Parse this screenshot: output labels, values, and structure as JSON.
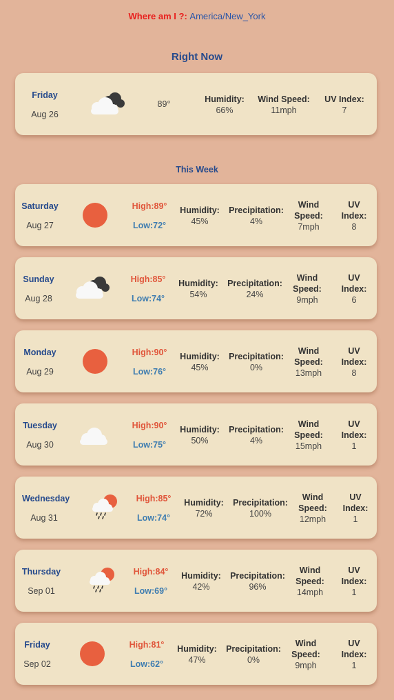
{
  "location": {
    "label": "Where am I ?:",
    "value": "America/New_York"
  },
  "current": {
    "section_title": "Right Now",
    "day": "Friday",
    "date": "Aug 26",
    "icon": "cloudy-icon",
    "temp": "89°",
    "humidity_label": "Humidity:",
    "humidity": "66%",
    "wind_label": "Wind Speed:",
    "wind": "11mph",
    "uv_label": "UV Index:",
    "uv": "7"
  },
  "week": {
    "section_title": "This Week",
    "labels": {
      "humidity": "Humidity:",
      "precip": "Precipitation:",
      "wind_1": "Wind",
      "wind_2": "Speed:",
      "uv_1": "UV",
      "uv_2": "Index:"
    },
    "days": [
      {
        "day": "Saturday",
        "date": "Aug 27",
        "icon": "sun-icon",
        "high": "High:89°",
        "low": "Low:72°",
        "humidity": "45%",
        "precip": "4%",
        "wind": "7mph",
        "uv": "8"
      },
      {
        "day": "Sunday",
        "date": "Aug 28",
        "icon": "cloudy-icon",
        "high": "High:85°",
        "low": "Low:74°",
        "humidity": "54%",
        "precip": "24%",
        "wind": "9mph",
        "uv": "6"
      },
      {
        "day": "Monday",
        "date": "Aug 29",
        "icon": "sun-icon",
        "high": "High:90°",
        "low": "Low:76°",
        "humidity": "45%",
        "precip": "0%",
        "wind": "13mph",
        "uv": "8"
      },
      {
        "day": "Tuesday",
        "date": "Aug 30",
        "icon": "cloud-icon",
        "high": "High:90°",
        "low": "Low:75°",
        "humidity": "50%",
        "precip": "4%",
        "wind": "15mph",
        "uv": "1"
      },
      {
        "day": "Wednesday",
        "date": "Aug 31",
        "icon": "rain-sun-icon",
        "high": "High:85°",
        "low": "Low:74°",
        "humidity": "72%",
        "precip": "100%",
        "wind": "12mph",
        "uv": "1"
      },
      {
        "day": "Thursday",
        "date": "Sep 01",
        "icon": "rain-sun-icon",
        "high": "High:84°",
        "low": "Low:69°",
        "humidity": "42%",
        "precip": "96%",
        "wind": "14mph",
        "uv": "1"
      },
      {
        "day": "Friday",
        "date": "Sep 02",
        "icon": "sun-icon",
        "high": "High:81°",
        "low": "Low:62°",
        "humidity": "47%",
        "precip": "0%",
        "wind": "9mph",
        "uv": "1"
      }
    ]
  },
  "colors": {
    "background": "#e2b49a",
    "card": "#f0e3c6",
    "sun": "#e8603f",
    "cloud_light": "#f8f8f8",
    "cloud_dark": "#3a3a3a",
    "high": "#e0553a",
    "low": "#3f7db0",
    "title": "#264a8c"
  }
}
